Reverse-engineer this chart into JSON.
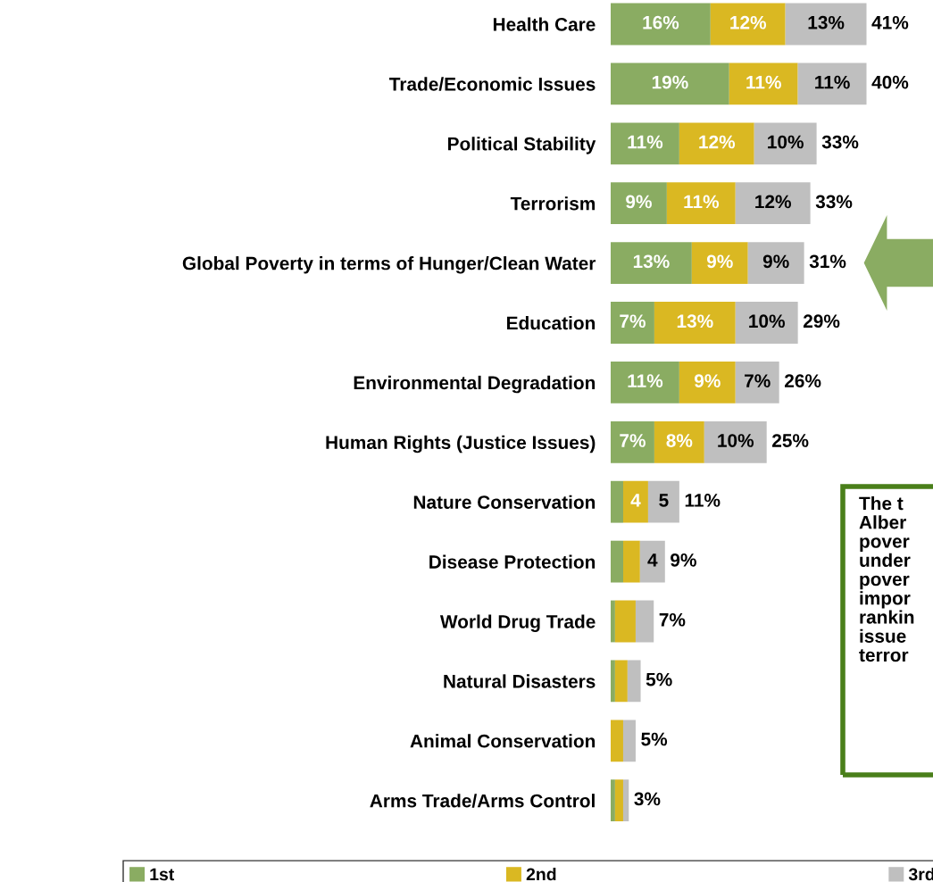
{
  "chart_data": {
    "type": "bar",
    "orientation": "horizontal",
    "stacked": true,
    "legend": "bottom",
    "grid": false,
    "categories": [
      "Health Care",
      "Trade/Economic Issues",
      "Political Stability",
      "Terrorism",
      "Global Poverty in terms of Hunger/Clean Water",
      "Education",
      "Environmental Degradation",
      "Human Rights (Justice Issues)",
      "Nature Conservation",
      "Disease Protection",
      "World Drug Trade",
      "Natural Disasters",
      "Animal Conservation",
      "Arms Trade/Arms Control"
    ],
    "series": [
      {
        "name": "1st",
        "color": "#8aac62",
        "values": [
          16,
          19,
          11,
          9,
          13,
          7,
          11,
          7,
          2,
          2,
          0.7,
          0.7,
          0,
          0.7
        ],
        "value_labels": [
          "16%",
          "19%",
          "11%",
          "9%",
          "13%",
          "7%",
          "11%",
          "7%",
          null,
          null,
          null,
          null,
          null,
          null
        ]
      },
      {
        "name": "2nd",
        "color": "#dab822",
        "values": [
          12,
          11,
          12,
          11,
          9,
          13,
          9,
          8,
          4,
          2.7,
          3.3,
          2,
          2,
          1.3
        ],
        "value_labels": [
          "12%",
          "11%",
          "12%",
          "11%",
          "9%",
          "13%",
          "9%",
          "8%",
          "4",
          null,
          null,
          null,
          null,
          null
        ]
      },
      {
        "name": "3rd",
        "color": "#bfbfbf",
        "values": [
          13,
          11,
          10,
          12,
          9,
          10,
          7,
          10,
          5,
          4,
          2.9,
          2.1,
          2,
          0.9
        ],
        "value_labels": [
          "13%",
          "11%",
          "10%",
          "12%",
          "9%",
          "10%",
          "7%",
          "10%",
          "5",
          "4",
          null,
          null,
          null,
          null
        ]
      }
    ],
    "totals": [
      "41%",
      "40%",
      "33%",
      "33%",
      "31%",
      "29%",
      "26%",
      "25%",
      "11%",
      "9%",
      "7%",
      "5%",
      "5%",
      "3%"
    ],
    "annotations": [
      "The t\nAlber\npover\nunder\npover\nimpor\nrankin\nissue\nterror"
    ]
  }
}
